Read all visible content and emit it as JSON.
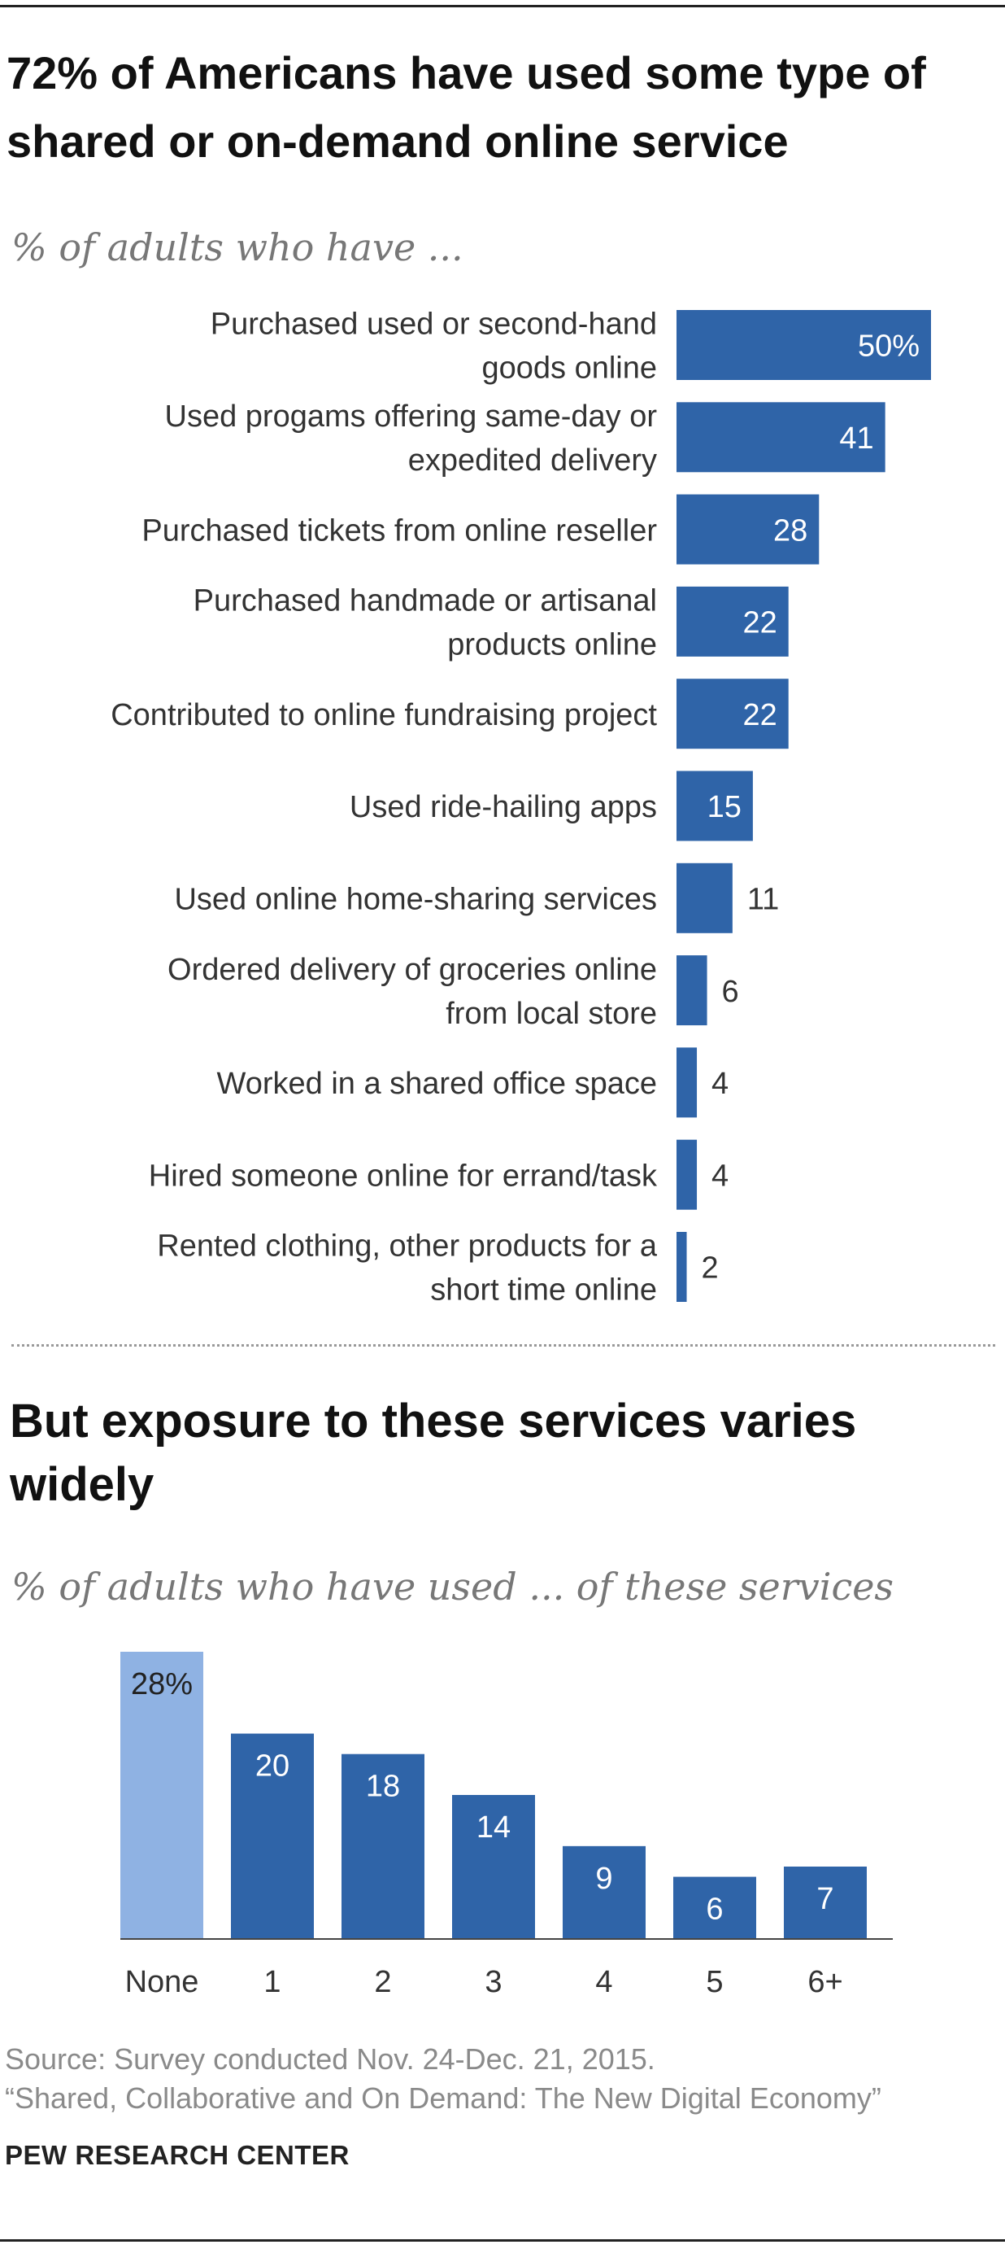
{
  "header": {
    "title": "72% of Americans have used some type of shared or on-demand  online service",
    "subtitle": "% of adults who have ..."
  },
  "second": {
    "title": "But exposure to these services varies widely",
    "subtitle": "% of adults who have used ... of these services"
  },
  "footer": {
    "source": "Source: Survey conducted Nov. 24-Dec. 21, 2015.",
    "report": "“Shared, Collaborative and On Demand: The New Digital Economy”",
    "org": "PEW RESEARCH CENTER"
  },
  "colors": {
    "bar": "#2f64a8",
    "highlight": "#8fb2e3",
    "label_in": "#ffffff",
    "label_out": "#333333"
  },
  "chart_data": [
    {
      "type": "bar",
      "orientation": "horizontal",
      "categories": [
        [
          "Purchased used or second-hand",
          "goods online"
        ],
        [
          "Used progams offering same-day or",
          "expedited delivery"
        ],
        [
          "Purchased tickets from online reseller"
        ],
        [
          "Purchased handmade or artisanal",
          "products online"
        ],
        [
          "Contributed to online fundraising project"
        ],
        [
          "Used ride-hailing apps"
        ],
        [
          "Used online home-sharing services"
        ],
        [
          "Ordered delivery of groceries online",
          "from local store"
        ],
        [
          "Worked in a shared office space"
        ],
        [
          "Hired someone online for errand/task"
        ],
        [
          "Rented clothing, other products for a",
          "short time online"
        ]
      ],
      "values": [
        50,
        41,
        28,
        22,
        22,
        15,
        11,
        6,
        4,
        4,
        2
      ],
      "value_labels": [
        "50%",
        "41",
        "28",
        "22",
        "22",
        "15",
        "11",
        "6",
        "4",
        "4",
        "2"
      ],
      "xlim": [
        0,
        50
      ]
    },
    {
      "type": "bar",
      "orientation": "vertical",
      "categories": [
        "None",
        "1",
        "2",
        "3",
        "4",
        "5",
        "6+"
      ],
      "values": [
        28,
        20,
        18,
        14,
        9,
        6,
        7
      ],
      "value_labels": [
        "28%",
        "20",
        "18",
        "14",
        "9",
        "6",
        "7"
      ],
      "highlight_index": 0,
      "ylim": [
        0,
        28
      ]
    }
  ]
}
